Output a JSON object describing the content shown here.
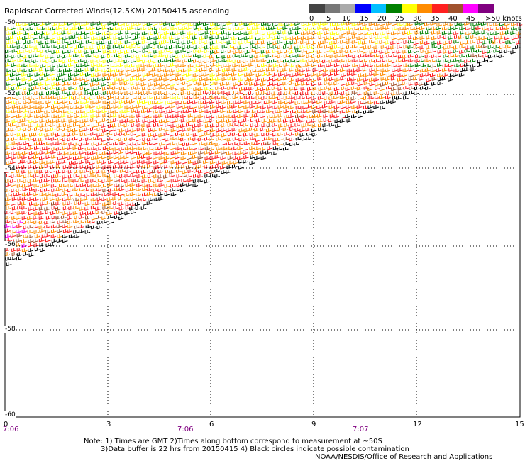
{
  "title": "Rapidscat Corrected Winds(12.5KM) 20150415 ascending",
  "legend": {
    "labels": [
      "0",
      "5",
      "10",
      "15",
      "20",
      "25",
      "30",
      "35",
      "40",
      "45",
      ">50 knots"
    ],
    "colors": [
      "#444444",
      "#777777",
      "#aaaaaa",
      "#0000ff",
      "#00bfff",
      "#008000",
      "#ffff00",
      "#ff8c00",
      "#ff2020",
      "#a0522d",
      "#ff00ff",
      "#800080"
    ]
  },
  "latitude_labels": [
    "-50",
    "-52",
    "-54",
    "-56",
    "-58",
    "-60"
  ],
  "longitude_labels": [
    "0",
    "3",
    "6",
    "9",
    "12",
    "15"
  ],
  "time_labels": [
    "7:06",
    "7:06",
    "7:07"
  ],
  "notes": [
    "Note: 1) Times are GMT 2)Times along bottom correspond to measurement at ~50S",
    "3)Data buffer is 22 hrs from 20150415 4) Black circles indicate possible contamination",
    "NOAA/NESDIS/Office of Research and Applications"
  ]
}
